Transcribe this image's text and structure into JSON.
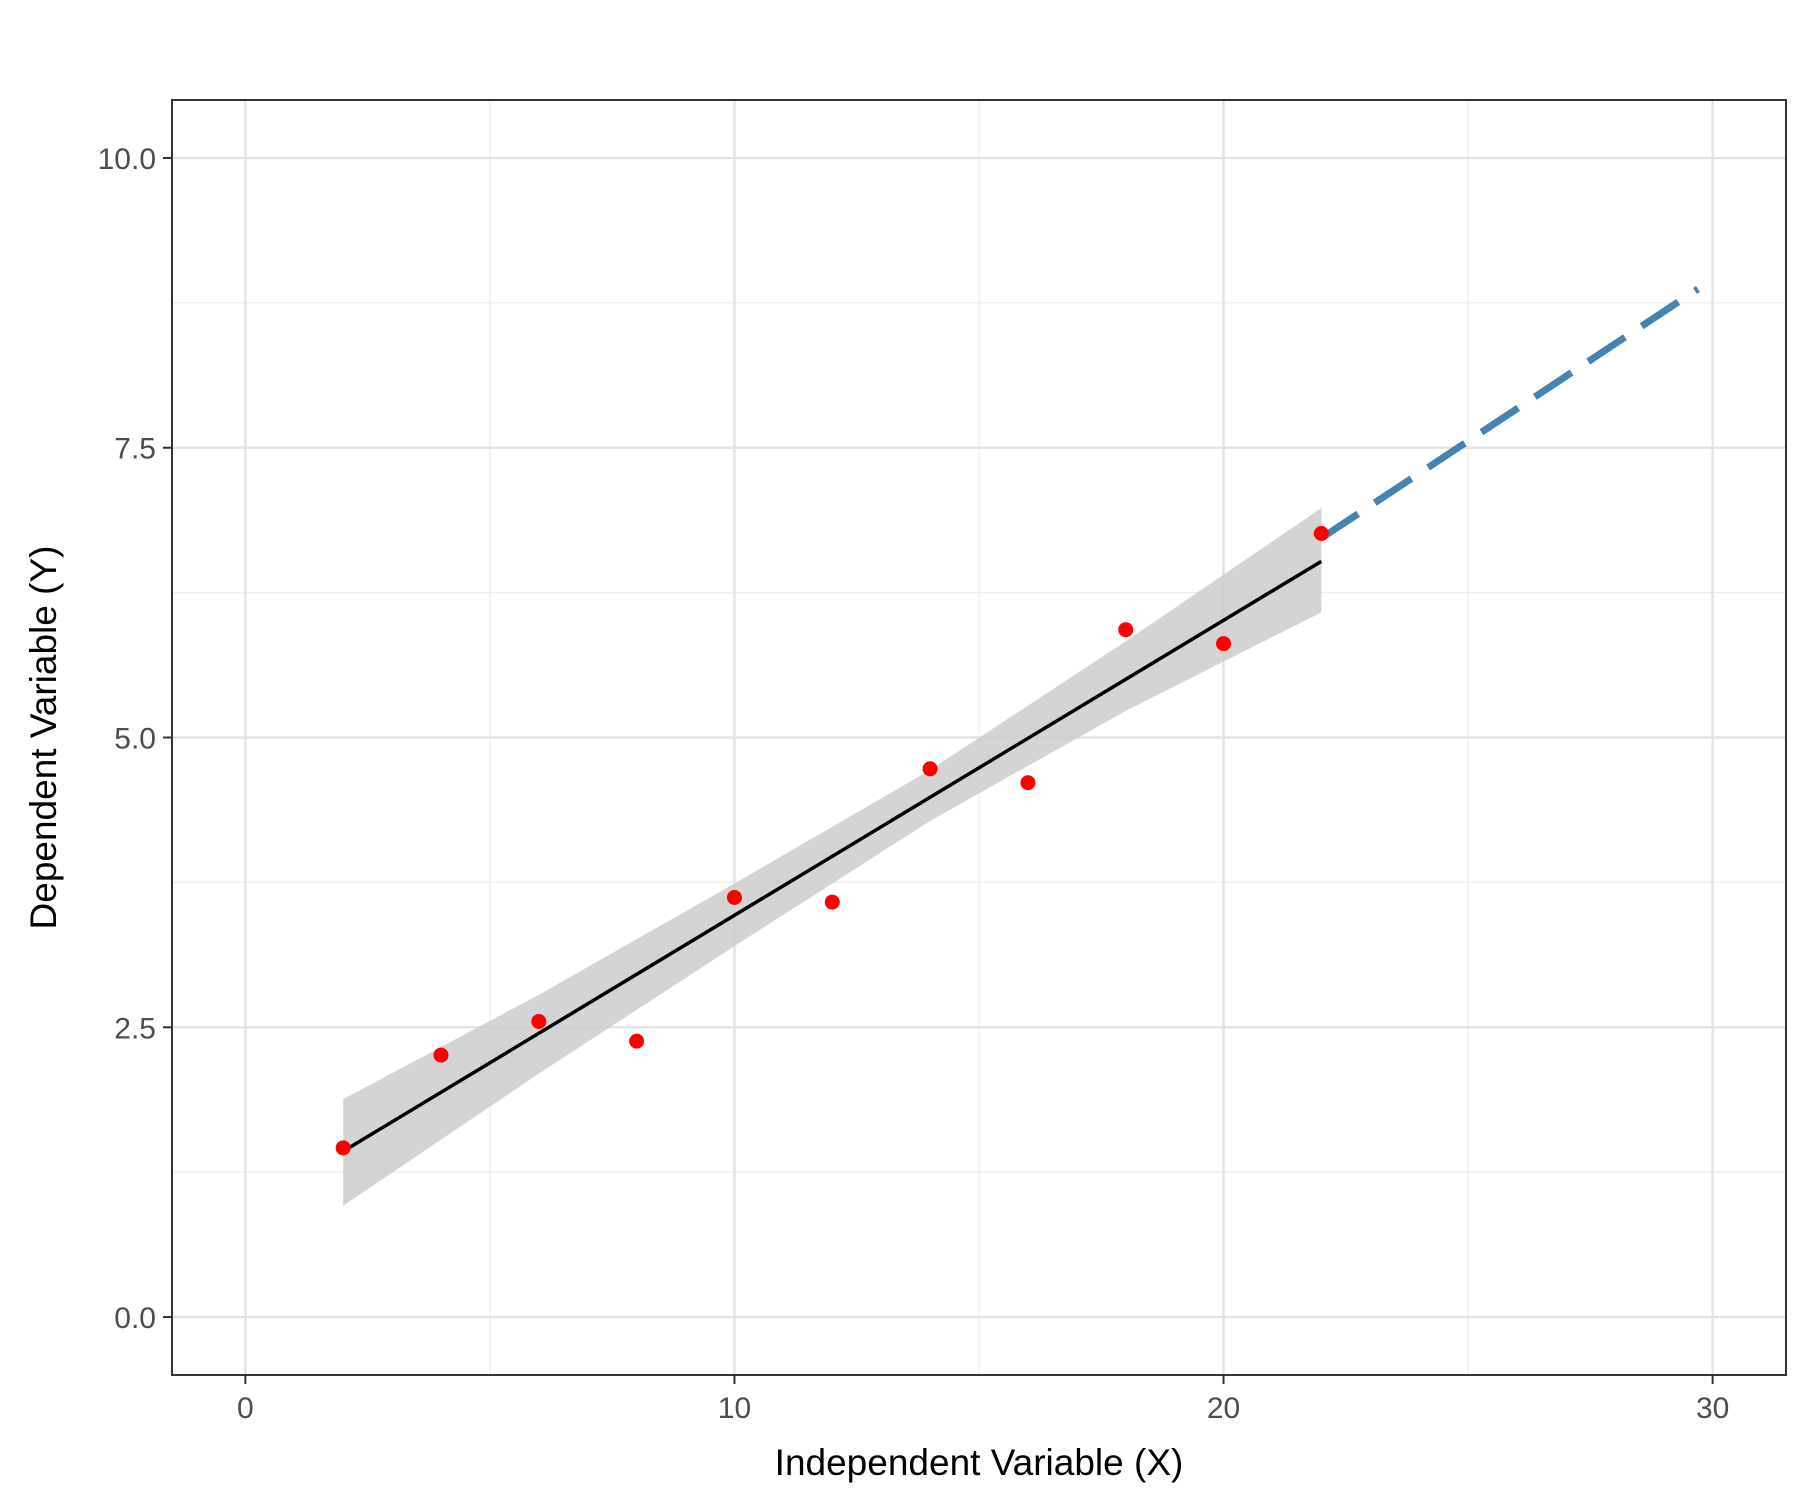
{
  "chart_data": {
    "type": "scatter",
    "title": "",
    "xlabel": "Independent Variable (X)",
    "ylabel": "Dependent Variable (Y)",
    "xlim": [
      -1.5,
      31.5
    ],
    "ylim": [
      -0.5,
      10.5
    ],
    "x_ticks": [
      0,
      10,
      20,
      30
    ],
    "x_tick_labels": [
      "0",
      "10",
      "20",
      "30"
    ],
    "y_ticks": [
      0,
      2.5,
      5,
      7.5,
      10
    ],
    "y_tick_labels": [
      "0.0",
      "2.5",
      "5.0",
      "7.5",
      "10.0"
    ],
    "x_minor_grid": [
      5,
      15,
      25
    ],
    "y_minor_grid": [
      1.25,
      3.75,
      6.25,
      8.75
    ],
    "grid": true,
    "legend": "none",
    "points": {
      "color": "#ff0000",
      "x": [
        2,
        4,
        6,
        8,
        10,
        12,
        14,
        16,
        18,
        20,
        22
      ],
      "y": [
        1.46,
        2.26,
        2.55,
        2.38,
        3.62,
        3.58,
        4.73,
        4.61,
        5.93,
        5.81,
        6.76
      ]
    },
    "fit_line": {
      "color": "#000000",
      "x": [
        2,
        22
      ],
      "y": [
        1.43,
        6.52
      ]
    },
    "confidence_band": {
      "color": "#cccccc",
      "x": [
        2,
        6,
        10,
        14,
        18,
        22
      ],
      "lower": [
        0.96,
        2.1,
        3.2,
        4.28,
        5.23,
        6.08
      ],
      "upper": [
        1.88,
        2.78,
        3.74,
        4.72,
        5.83,
        6.98
      ]
    },
    "extrapolation_line": {
      "color": "#4682b4",
      "style": "dashed",
      "x": [
        22,
        29.7
      ],
      "y": [
        6.72,
        8.87
      ]
    }
  }
}
